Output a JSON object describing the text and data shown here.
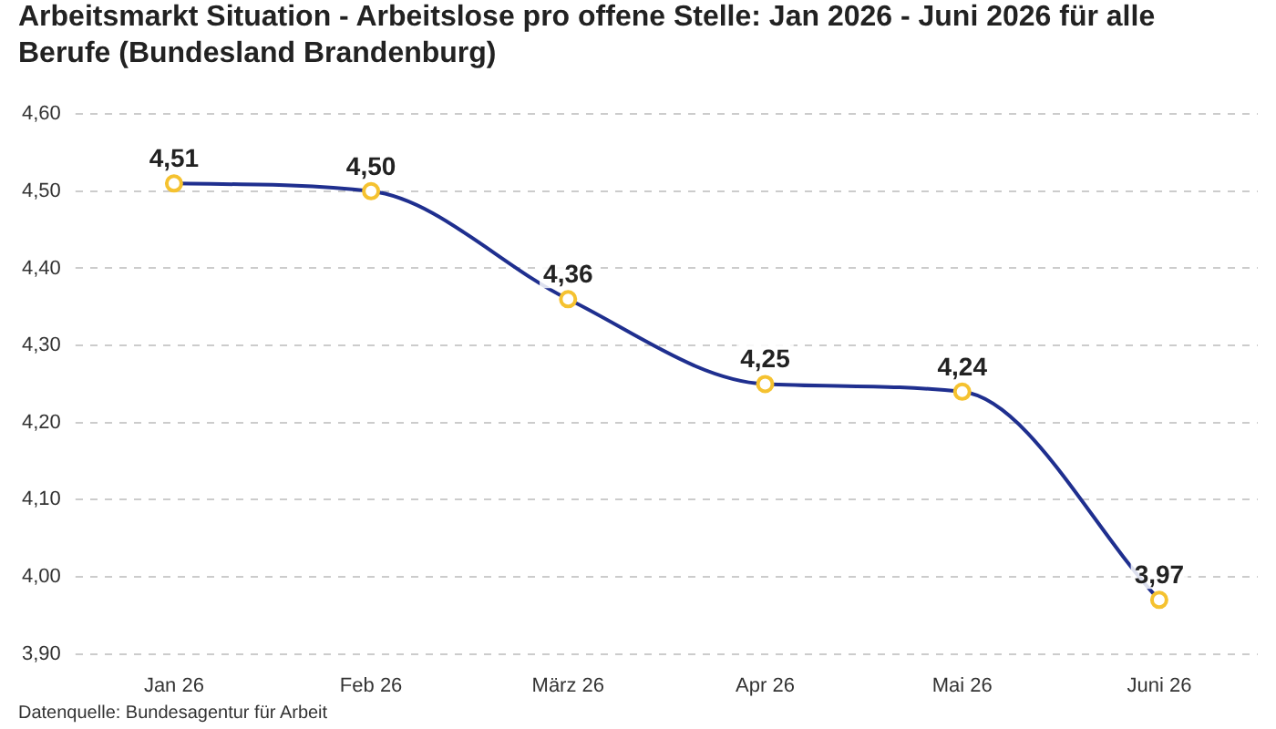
{
  "chart_data": {
    "type": "line",
    "title": "Arbeitsmarkt Situation - Arbeitslose pro offene Stelle: Jan 2026 - Juni 2026 für alle Berufe (Bundesland Brandenburg)",
    "categories": [
      "Jan 26",
      "Feb 26",
      "März 26",
      "Apr 26",
      "Mai 26",
      "Juni 26"
    ],
    "series": [
      {
        "color": "#1f2f8f",
        "colors": [
          "#f5c230",
          "#f5c230",
          "#f5c230",
          "#f5c230",
          "#f5c230",
          "#f5c230"
        ],
        "values": [
          4.51,
          4.5,
          4.36,
          4.25,
          4.24,
          3.97
        ],
        "value_labels": [
          "4,51",
          "4,50",
          "4,36",
          "4,25",
          "4,24",
          "3,97"
        ]
      }
    ],
    "ylim": [
      3.9,
      4.6
    ],
    "yticks": [
      {
        "value": 3.9,
        "label": "3,90"
      },
      {
        "value": 4.0,
        "label": "4,00"
      },
      {
        "value": 4.1,
        "label": "4,10"
      },
      {
        "value": 4.2,
        "label": "4,20"
      },
      {
        "value": 4.3,
        "label": "4,30"
      },
      {
        "value": 4.4,
        "label": "4,40"
      },
      {
        "value": 4.5,
        "label": "4,50"
      },
      {
        "value": 4.6,
        "label": "4,60"
      }
    ],
    "grid": "y",
    "marker": "circle",
    "line_style": "solid",
    "legend": false,
    "annotations": [
      "Datenquelle: Bundesagentur für Arbeit"
    ]
  }
}
